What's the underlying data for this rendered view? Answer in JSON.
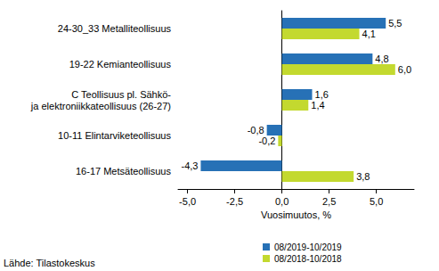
{
  "chart_data": {
    "type": "bar",
    "orientation": "horizontal",
    "categories": [
      "24-30_33 Metalliteollisuus",
      "19-22 Kemianteollisuus",
      "C Teollisuus pl. Sähkö-\nja elektroniikkateollisuus (26-27)",
      "10-11 Elintarviketeollisuus",
      "16-17 Metsäteollisuus"
    ],
    "series": [
      {
        "name": "08/2019-10/2019",
        "color": "#2771b6",
        "values": [
          5.5,
          4.8,
          1.6,
          -0.8,
          -4.3
        ],
        "value_labels": [
          "5,5",
          "4,8",
          "1,6",
          "-0,8",
          "-4,3"
        ]
      },
      {
        "name": "08/2018-10/2018",
        "color": "#c3d92f",
        "values": [
          4.1,
          6.0,
          1.4,
          -0.2,
          3.8
        ],
        "value_labels": [
          "4,1",
          "6,0",
          "1,4",
          "-0,2",
          "3,8"
        ]
      }
    ],
    "x_label": "Vuosimuutos, %",
    "xlim": [
      -5.5,
      7.0
    ],
    "xticks": [
      {
        "value": -5,
        "label": "-5,0"
      },
      {
        "value": -2.5,
        "label": "-2,5"
      },
      {
        "value": 0,
        "label": "0,0"
      },
      {
        "value": 2.5,
        "label": "2,5"
      },
      {
        "value": 5,
        "label": "5,0"
      }
    ],
    "data_labels": true,
    "grid": false,
    "legend": "bottom",
    "annotations": [
      "Lähde: Tilastokeskus"
    ]
  }
}
